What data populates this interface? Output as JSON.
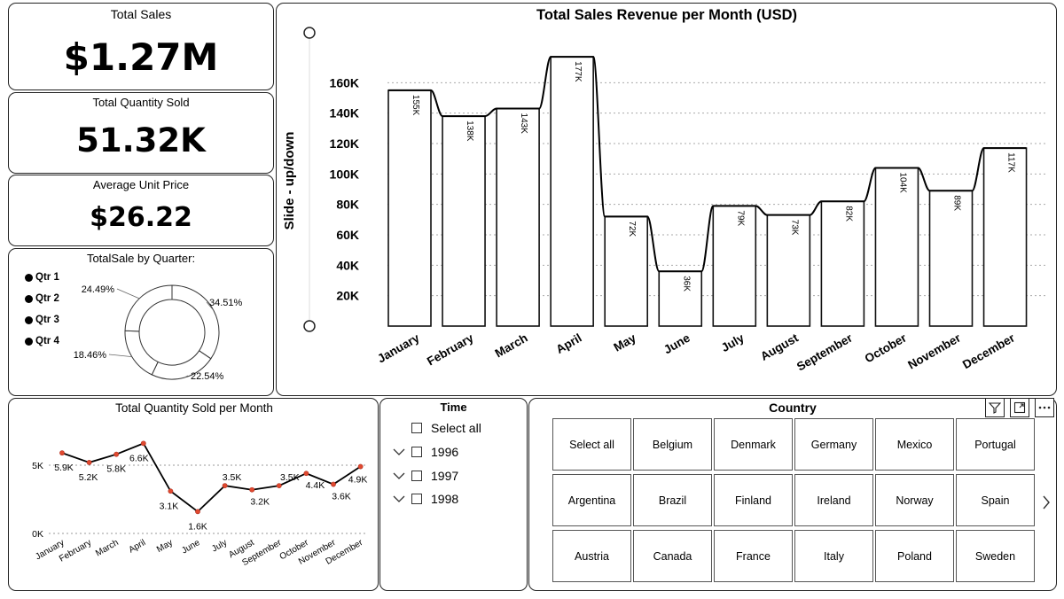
{
  "kpis": {
    "total_sales": {
      "title": "Total Sales",
      "value": "$1.27M"
    },
    "total_quantity": {
      "title": "Total Quantity Sold",
      "value": "51.32K"
    },
    "avg_price": {
      "title": "Average Unit Price",
      "value": "$26.22"
    }
  },
  "quarter_panel": {
    "title": "TotalSale by Quarter:",
    "legend": [
      "Qtr 1",
      "Qtr 2",
      "Qtr 3",
      "Qtr 4"
    ]
  },
  "revenue_chart": {
    "slider_label": "Slide - up/down"
  },
  "time_slicer": {
    "title": "Time",
    "select_all": "Select all",
    "years": [
      "1996",
      "1997",
      "1998"
    ]
  },
  "country_slicer": {
    "title": "Country",
    "buttons": [
      "Select all",
      "Belgium",
      "Denmark",
      "Germany",
      "Mexico",
      "Portugal",
      "Argentina",
      "Brazil",
      "Finland",
      "Ireland",
      "Norway",
      "Spain",
      "Austria",
      "Canada",
      "France",
      "Italy",
      "Poland",
      "Sweden"
    ]
  },
  "chart_data": [
    {
      "type": "pie",
      "title": "TotalSale by Quarter:",
      "categories": [
        "Qtr 1",
        "Qtr 2",
        "Qtr 3",
        "Qtr 4"
      ],
      "values": [
        34.51,
        22.54,
        18.46,
        24.49
      ],
      "labels": [
        "34.51%",
        "22.54%",
        "18.46%",
        "24.49%"
      ],
      "legend": "left"
    },
    {
      "type": "bar",
      "title": "Total Sales Revenue per Month (USD)",
      "categories": [
        "January",
        "February",
        "March",
        "April",
        "May",
        "June",
        "July",
        "August",
        "September",
        "October",
        "November",
        "December"
      ],
      "values": [
        155,
        138,
        143,
        177,
        72,
        36,
        79,
        73,
        82,
        104,
        89,
        117
      ],
      "labels": [
        "155K",
        "138K",
        "143K",
        "177K",
        "72K",
        "36K",
        "79K",
        "73K",
        "82K",
        "104K",
        "89K",
        "117K"
      ],
      "ylim": [
        0,
        180
      ],
      "yticks": [
        20,
        40,
        60,
        80,
        100,
        120,
        140,
        160
      ],
      "ytick_labels": [
        "20K",
        "40K",
        "60K",
        "80K",
        "100K",
        "120K",
        "140K",
        "160K"
      ],
      "grid": true
    },
    {
      "type": "line",
      "title": "Total Quantity Sold per Month",
      "categories": [
        "January",
        "February",
        "March",
        "April",
        "May",
        "June",
        "July",
        "August",
        "September",
        "October",
        "November",
        "December"
      ],
      "values": [
        5.9,
        5.2,
        5.8,
        6.6,
        3.1,
        1.6,
        3.5,
        3.2,
        3.5,
        4.4,
        3.6,
        4.9
      ],
      "labels": [
        "5.9K",
        "5.2K",
        "5.8K",
        "6.6K",
        "3.1K",
        "1.6K",
        "3.5K",
        "3.2K",
        "3.5K",
        "4.4K",
        "3.6K",
        "4.9K"
      ],
      "ylim": [
        0,
        7
      ],
      "yticks": [
        0,
        5
      ],
      "ytick_labels": [
        "0K",
        "5K"
      ],
      "grid": true
    }
  ]
}
